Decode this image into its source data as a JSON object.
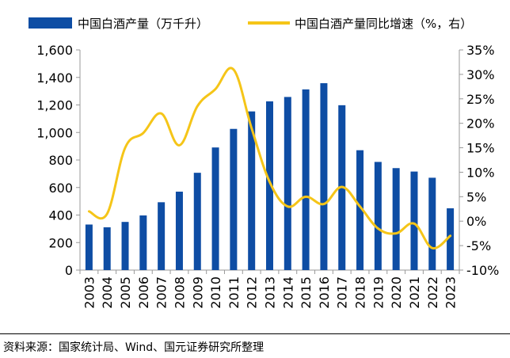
{
  "chart_data": {
    "type": "bar",
    "categories": [
      "2003",
      "2004",
      "2005",
      "2006",
      "2007",
      "2008",
      "2009",
      "2010",
      "2011",
      "2012",
      "2013",
      "2014",
      "2015",
      "2016",
      "2017",
      "2018",
      "2019",
      "2020",
      "2021",
      "2022",
      "2023"
    ],
    "series": [
      {
        "name": "中国白酒产量（万千升）",
        "type": "bar",
        "axis": "left",
        "color": "#0E4DA4",
        "values": [
          331,
          311,
          350,
          397,
          493,
          570,
          707,
          891,
          1026,
          1153,
          1226,
          1258,
          1313,
          1358,
          1198,
          871,
          786,
          741,
          716,
          671,
          449
        ]
      },
      {
        "name": "中国白酒产量同比增速（%，右）",
        "type": "line",
        "axis": "right",
        "color": "#F5C518",
        "values": [
          2.0,
          1.5,
          15.0,
          18.0,
          22.0,
          15.5,
          23.5,
          27.0,
          31.0,
          19.0,
          8.0,
          3.0,
          5.0,
          3.5,
          7.0,
          3.0,
          -1.5,
          -2.5,
          -0.5,
          -5.5,
          -3.0
        ]
      }
    ],
    "yleft": {
      "ylim": [
        0,
        1600
      ],
      "ticks": [
        0,
        200,
        400,
        600,
        800,
        1000,
        1200,
        1400,
        1600
      ],
      "tick_labels": [
        "0",
        "200",
        "400",
        "600",
        "800",
        "1,000",
        "1,200",
        "1,400",
        "1,600"
      ]
    },
    "yright": {
      "ylim": [
        -10,
        35
      ],
      "ticks": [
        -10,
        -5,
        0,
        5,
        10,
        15,
        20,
        25,
        30,
        35
      ],
      "tick_labels": [
        "-10%",
        "-5%",
        "0%",
        "5%",
        "10%",
        "15%",
        "20%",
        "25%",
        "30%",
        "35%"
      ]
    },
    "legend_position": "top",
    "grid": false
  },
  "source": "资料来源：国家统计局、Wind、国元证券研究所整理"
}
